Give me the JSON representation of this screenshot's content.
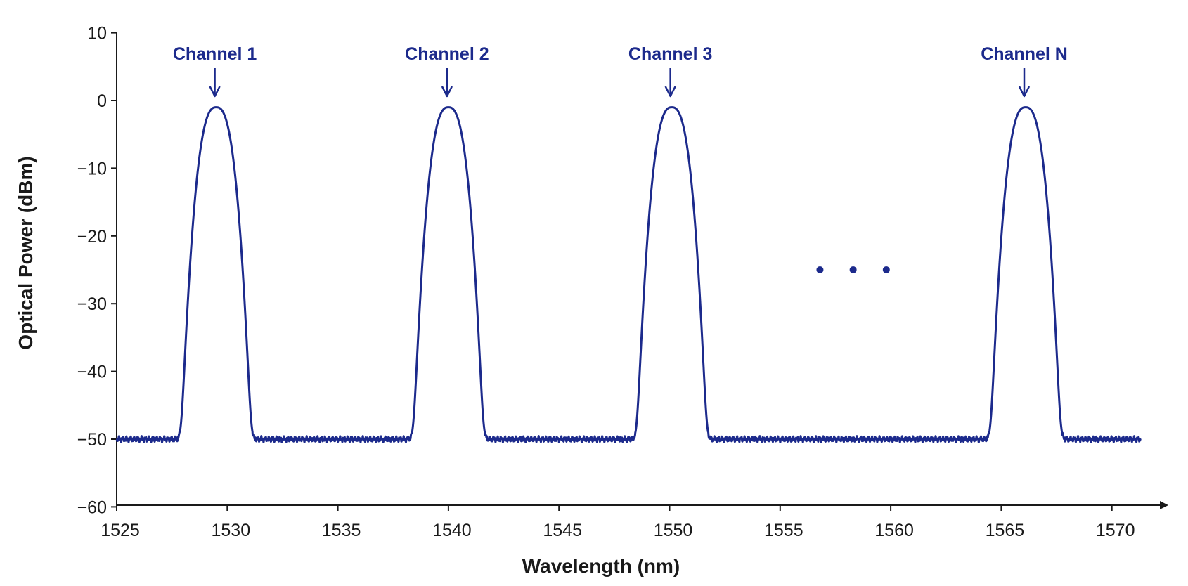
{
  "chart_data": {
    "type": "line",
    "title": "",
    "xlabel": "Wavelength (nm)",
    "ylabel": "Optical Power (dBm)",
    "xlim": [
      1525,
      1571.5
    ],
    "ylim": [
      -60,
      10
    ],
    "x_ticks": [
      1525,
      1530,
      1535,
      1540,
      1545,
      1550,
      1555,
      1560,
      1565,
      1570
    ],
    "x_tick_labels": [
      "1525",
      "1530",
      "1535",
      "1540",
      "1545",
      "1550",
      "1555",
      "1560",
      "1565",
      "1570"
    ],
    "y_ticks": [
      10,
      0,
      -10,
      -20,
      -30,
      -40,
      -50,
      -60
    ],
    "y_tick_labels": [
      "10",
      "0",
      "−10",
      "−20",
      "−30",
      "−40",
      "−50",
      "−60"
    ],
    "grid": false,
    "line_color": "#1c2a8c",
    "noise_floor_dbm": -50,
    "x_start": 1525,
    "x_end": 1571.3,
    "channels": [
      {
        "label": "Channel 1",
        "center_nm": 1529.5,
        "peak_dbm": -1
      },
      {
        "label": "Channel 2",
        "center_nm": 1540.0,
        "peak_dbm": -1
      },
      {
        "label": "Channel 3",
        "center_nm": 1550.1,
        "peak_dbm": -1
      },
      {
        "label": "Channel N",
        "center_nm": 1566.1,
        "peak_dbm": -1
      }
    ],
    "ellipsis": {
      "x": [
        1556.8,
        1558.3,
        1559.8
      ],
      "y": -25
    }
  }
}
